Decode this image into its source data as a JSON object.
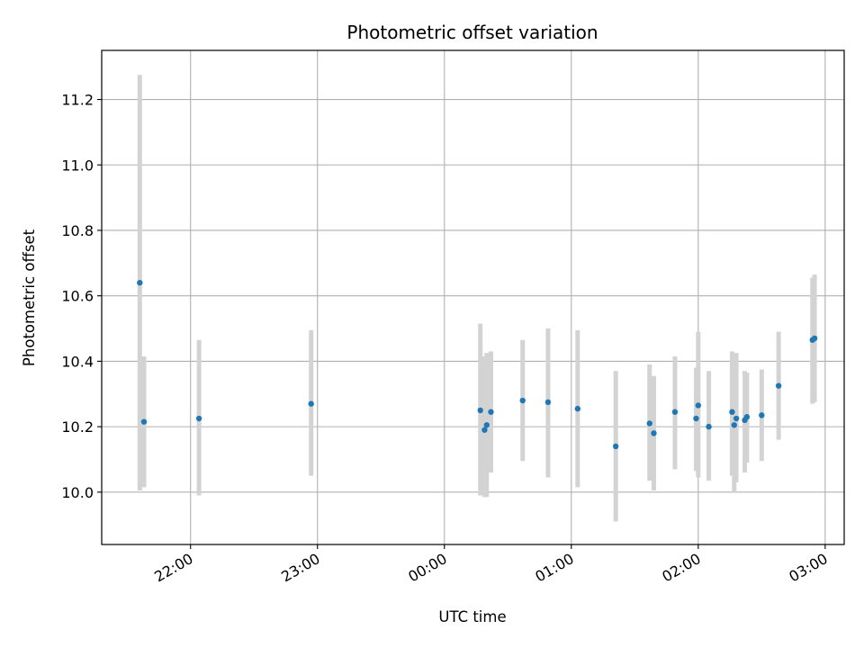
{
  "chart_data": {
    "type": "scatter",
    "title": "Photometric offset variation",
    "xlabel": "UTC time",
    "ylabel": "Photometric offset",
    "x_tick_labels": [
      "22:00",
      "23:00",
      "00:00",
      "01:00",
      "02:00",
      "03:00"
    ],
    "y_tick_labels": [
      "10.0",
      "10.2",
      "10.4",
      "10.6",
      "10.8",
      "11.0",
      "11.2"
    ],
    "x_ticks": [
      "22:00",
      "23:00",
      "00:00",
      "01:00",
      "02:00",
      "03:00"
    ],
    "y_ticks": [
      10.0,
      10.2,
      10.4,
      10.6,
      10.8,
      11.0,
      11.2
    ],
    "xlim": [
      "21:18",
      "03:09"
    ],
    "ylim": [
      9.84,
      11.35
    ],
    "grid": true,
    "point_color": "#1f77b4",
    "errorbar_color": "#d3d3d3",
    "points": [
      {
        "x": "21:36",
        "y": 10.64,
        "ylo": 10.005,
        "yhi": 11.275
      },
      {
        "x": "21:38",
        "y": 10.215,
        "ylo": 10.015,
        "yhi": 10.415
      },
      {
        "x": "22:04",
        "y": 10.225,
        "ylo": 9.99,
        "yhi": 10.465
      },
      {
        "x": "22:57",
        "y": 10.27,
        "ylo": 10.05,
        "yhi": 10.495
      },
      {
        "x": "00:17",
        "y": 10.25,
        "ylo": 9.99,
        "yhi": 10.515
      },
      {
        "x": "00:19",
        "y": 10.19,
        "ylo": 9.985,
        "yhi": 10.415
      },
      {
        "x": "00:20",
        "y": 10.205,
        "ylo": 9.985,
        "yhi": 10.425
      },
      {
        "x": "00:22",
        "y": 10.245,
        "ylo": 10.06,
        "yhi": 10.43
      },
      {
        "x": "00:37",
        "y": 10.28,
        "ylo": 10.095,
        "yhi": 10.465
      },
      {
        "x": "00:49",
        "y": 10.275,
        "ylo": 10.045,
        "yhi": 10.5
      },
      {
        "x": "01:03",
        "y": 10.255,
        "ylo": 10.015,
        "yhi": 10.495
      },
      {
        "x": "01:21",
        "y": 10.14,
        "ylo": 9.91,
        "yhi": 10.37
      },
      {
        "x": "01:37",
        "y": 10.21,
        "ylo": 10.035,
        "yhi": 10.39
      },
      {
        "x": "01:39",
        "y": 10.18,
        "ylo": 10.005,
        "yhi": 10.355
      },
      {
        "x": "01:49",
        "y": 10.245,
        "ylo": 10.07,
        "yhi": 10.415
      },
      {
        "x": "01:59",
        "y": 10.225,
        "ylo": 10.065,
        "yhi": 10.38
      },
      {
        "x": "02:00",
        "y": 10.265,
        "ylo": 10.045,
        "yhi": 10.49
      },
      {
        "x": "02:05",
        "y": 10.2,
        "ylo": 10.035,
        "yhi": 10.37
      },
      {
        "x": "02:16",
        "y": 10.245,
        "ylo": 10.05,
        "yhi": 10.43
      },
      {
        "x": "02:17",
        "y": 10.205,
        "ylo": 10.0,
        "yhi": 10.42
      },
      {
        "x": "02:18",
        "y": 10.225,
        "ylo": 10.03,
        "yhi": 10.425
      },
      {
        "x": "02:22",
        "y": 10.22,
        "ylo": 10.06,
        "yhi": 10.37
      },
      {
        "x": "02:23",
        "y": 10.23,
        "ylo": 10.09,
        "yhi": 10.365
      },
      {
        "x": "02:30",
        "y": 10.235,
        "ylo": 10.095,
        "yhi": 10.375
      },
      {
        "x": "02:38",
        "y": 10.325,
        "ylo": 10.16,
        "yhi": 10.49
      },
      {
        "x": "02:54",
        "y": 10.465,
        "ylo": 10.27,
        "yhi": 10.655
      },
      {
        "x": "02:55",
        "y": 10.47,
        "ylo": 10.275,
        "yhi": 10.665
      }
    ]
  }
}
